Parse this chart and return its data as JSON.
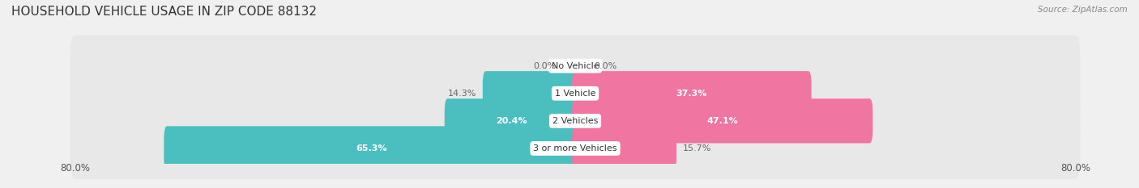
{
  "title": "HOUSEHOLD VEHICLE USAGE IN ZIP CODE 88132",
  "source": "Source: ZipAtlas.com",
  "categories": [
    "No Vehicle",
    "1 Vehicle",
    "2 Vehicles",
    "3 or more Vehicles"
  ],
  "owner_values": [
    0.0,
    14.3,
    20.4,
    65.3
  ],
  "renter_values": [
    0.0,
    37.3,
    47.1,
    15.7
  ],
  "owner_color": "#4BBFBF",
  "renter_color": "#F075A0",
  "renter_color_light": "#F5A0C0",
  "axis_min": -80.0,
  "axis_max": 80.0,
  "axis_label_left": "80.0%",
  "axis_label_right": "80.0%",
  "bar_height": 0.62,
  "background_color": "#f0f0f0",
  "bar_background_color": "#e8e8e8",
  "label_color_inside": "#ffffff",
  "label_color_outside": "#666666",
  "title_fontsize": 11,
  "source_fontsize": 7.5,
  "tick_fontsize": 8.5,
  "category_fontsize": 8,
  "label_fontsize": 8
}
